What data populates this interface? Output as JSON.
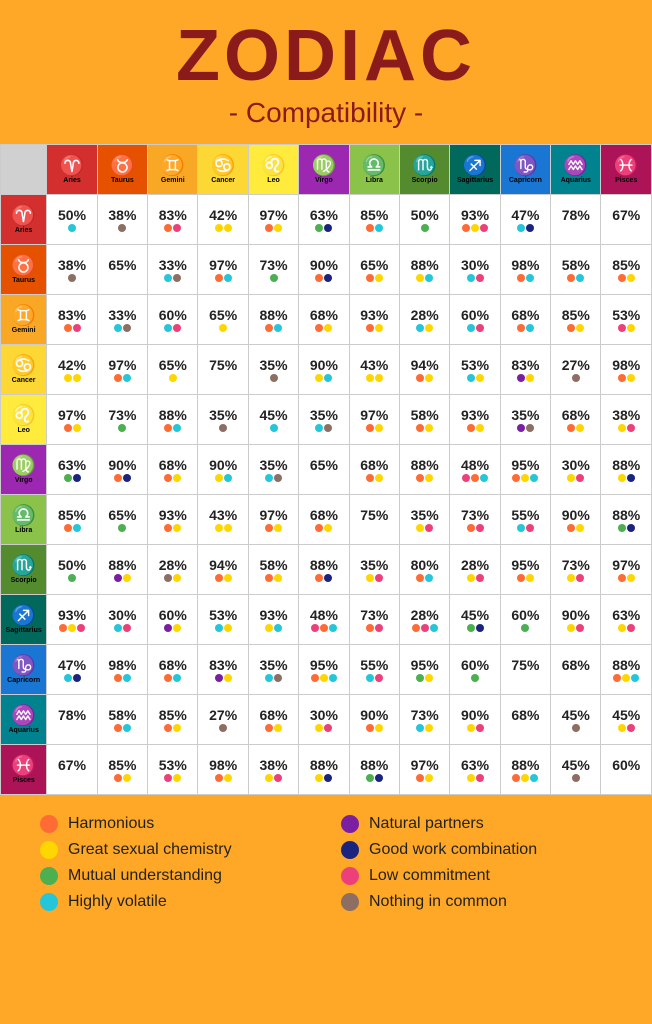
{
  "title": "ZODIAC",
  "subtitle": "- Compatibility -",
  "background_color": "#ffa726",
  "title_color": "#8b1a1a",
  "legend": [
    {
      "key": "harmonious",
      "label": "Harmonious",
      "color": "#ff6b35"
    },
    {
      "key": "great_sex",
      "label": "Great sexual chemistry",
      "color": "#ffd600"
    },
    {
      "key": "mutual",
      "label": "Mutual understanding",
      "color": "#4caf50"
    },
    {
      "key": "volatile",
      "label": "Highly volatile",
      "color": "#26c6da"
    },
    {
      "key": "natural",
      "label": "Natural partners",
      "color": "#7b1fa2"
    },
    {
      "key": "work",
      "label": "Good work combination",
      "color": "#1a237e"
    },
    {
      "key": "low",
      "label": "Low commitment",
      "color": "#ec407a"
    },
    {
      "key": "nothing",
      "label": "Nothing in common",
      "color": "#8d6e63"
    }
  ],
  "dot_colors": {
    "h": "#ff6b35",
    "s": "#ffd600",
    "m": "#4caf50",
    "v": "#26c6da",
    "n": "#7b1fa2",
    "w": "#1a237e",
    "l": "#ec407a",
    "x": "#8d6e63"
  },
  "signs": [
    {
      "name": "Aries",
      "glyph": "♈",
      "color": "#d32f2f"
    },
    {
      "name": "Taurus",
      "glyph": "♉",
      "color": "#e65100"
    },
    {
      "name": "Gemini",
      "glyph": "♊",
      "color": "#f9a825"
    },
    {
      "name": "Cancer",
      "glyph": "♋",
      "color": "#fdd835"
    },
    {
      "name": "Leo",
      "glyph": "♌",
      "color": "#ffeb3b"
    },
    {
      "name": "Virgo",
      "glyph": "♍",
      "color": "#9c27b0"
    },
    {
      "name": "Libra",
      "glyph": "♎",
      "color": "#8bc34a"
    },
    {
      "name": "Scorpio",
      "glyph": "♏",
      "color": "#558b2f"
    },
    {
      "name": "Sagittarius",
      "glyph": "♐",
      "color": "#00695c"
    },
    {
      "name": "Capricorn",
      "glyph": "♑",
      "color": "#1976d2"
    },
    {
      "name": "Aquarius",
      "glyph": "♒",
      "color": "#00838f"
    },
    {
      "name": "Pisces",
      "glyph": "♓",
      "color": "#ad1457"
    }
  ],
  "cells": [
    [
      {
        "p": "50%",
        "d": [
          "v"
        ]
      },
      {
        "p": "38%",
        "d": [
          "x"
        ]
      },
      {
        "p": "83%",
        "d": [
          "h",
          "l"
        ]
      },
      {
        "p": "42%",
        "d": [
          "s",
          "s"
        ]
      },
      {
        "p": "97%",
        "d": [
          "h",
          "s"
        ]
      },
      {
        "p": "63%",
        "d": [
          "m",
          "w"
        ]
      },
      {
        "p": "85%",
        "d": [
          "h",
          "v"
        ]
      },
      {
        "p": "50%",
        "d": [
          "m"
        ]
      },
      {
        "p": "93%",
        "d": [
          "h",
          "s",
          "l"
        ]
      },
      {
        "p": "47%",
        "d": [
          "v",
          "w"
        ]
      },
      {
        "p": "78%",
        "d": []
      },
      {
        "p": "67%",
        "d": []
      }
    ],
    [
      {
        "p": "38%",
        "d": [
          "x"
        ]
      },
      {
        "p": "65%",
        "d": []
      },
      {
        "p": "33%",
        "d": [
          "v",
          "x"
        ]
      },
      {
        "p": "97%",
        "d": [
          "h",
          "v"
        ]
      },
      {
        "p": "73%",
        "d": [
          "m"
        ]
      },
      {
        "p": "90%",
        "d": [
          "h",
          "w"
        ]
      },
      {
        "p": "65%",
        "d": [
          "h",
          "s"
        ]
      },
      {
        "p": "88%",
        "d": [
          "s",
          "v"
        ]
      },
      {
        "p": "30%",
        "d": [
          "v",
          "l"
        ]
      },
      {
        "p": "98%",
        "d": [
          "h",
          "v"
        ]
      },
      {
        "p": "58%",
        "d": [
          "h",
          "v"
        ]
      },
      {
        "p": "85%",
        "d": [
          "h",
          "s"
        ]
      }
    ],
    [
      {
        "p": "83%",
        "d": [
          "h",
          "l"
        ]
      },
      {
        "p": "33%",
        "d": [
          "v",
          "x"
        ]
      },
      {
        "p": "60%",
        "d": [
          "v",
          "l"
        ]
      },
      {
        "p": "65%",
        "d": [
          "s"
        ]
      },
      {
        "p": "88%",
        "d": [
          "h",
          "v"
        ]
      },
      {
        "p": "68%",
        "d": [
          "h",
          "s"
        ]
      },
      {
        "p": "93%",
        "d": [
          "h",
          "s"
        ]
      },
      {
        "p": "28%",
        "d": [
          "v",
          "s"
        ]
      },
      {
        "p": "60%",
        "d": [
          "v",
          "l"
        ]
      },
      {
        "p": "68%",
        "d": [
          "h",
          "v"
        ]
      },
      {
        "p": "85%",
        "d": [
          "h",
          "s"
        ]
      },
      {
        "p": "53%",
        "d": [
          "l",
          "s"
        ]
      }
    ],
    [
      {
        "p": "42%",
        "d": [
          "s",
          "s"
        ]
      },
      {
        "p": "97%",
        "d": [
          "h",
          "v"
        ]
      },
      {
        "p": "65%",
        "d": [
          "s"
        ]
      },
      {
        "p": "75%",
        "d": []
      },
      {
        "p": "35%",
        "d": [
          "x"
        ]
      },
      {
        "p": "90%",
        "d": [
          "s",
          "v"
        ]
      },
      {
        "p": "43%",
        "d": [
          "s",
          "s"
        ]
      },
      {
        "p": "94%",
        "d": [
          "h",
          "s"
        ]
      },
      {
        "p": "53%",
        "d": [
          "v",
          "s"
        ]
      },
      {
        "p": "83%",
        "d": [
          "n",
          "s"
        ]
      },
      {
        "p": "27%",
        "d": [
          "x"
        ]
      },
      {
        "p": "98%",
        "d": [
          "h",
          "s"
        ]
      }
    ],
    [
      {
        "p": "97%",
        "d": [
          "h",
          "s"
        ]
      },
      {
        "p": "73%",
        "d": [
          "m"
        ]
      },
      {
        "p": "88%",
        "d": [
          "h",
          "v"
        ]
      },
      {
        "p": "35%",
        "d": [
          "x"
        ]
      },
      {
        "p": "45%",
        "d": [
          "v"
        ]
      },
      {
        "p": "35%",
        "d": [
          "v",
          "x"
        ]
      },
      {
        "p": "97%",
        "d": [
          "h",
          "s"
        ]
      },
      {
        "p": "58%",
        "d": [
          "h",
          "s"
        ]
      },
      {
        "p": "93%",
        "d": [
          "h",
          "s"
        ]
      },
      {
        "p": "35%",
        "d": [
          "n",
          "x"
        ]
      },
      {
        "p": "68%",
        "d": [
          "h",
          "s"
        ]
      },
      {
        "p": "38%",
        "d": [
          "s",
          "l"
        ]
      }
    ],
    [
      {
        "p": "63%",
        "d": [
          "m",
          "w"
        ]
      },
      {
        "p": "90%",
        "d": [
          "h",
          "w"
        ]
      },
      {
        "p": "68%",
        "d": [
          "h",
          "s"
        ]
      },
      {
        "p": "90%",
        "d": [
          "s",
          "v"
        ]
      },
      {
        "p": "35%",
        "d": [
          "v",
          "x"
        ]
      },
      {
        "p": "65%",
        "d": []
      },
      {
        "p": "68%",
        "d": [
          "h",
          "s"
        ]
      },
      {
        "p": "88%",
        "d": [
          "h",
          "s"
        ]
      },
      {
        "p": "48%",
        "d": [
          "l",
          "h",
          "v"
        ]
      },
      {
        "p": "95%",
        "d": [
          "h",
          "s",
          "v"
        ]
      },
      {
        "p": "30%",
        "d": [
          "s",
          "l"
        ]
      },
      {
        "p": "88%",
        "d": [
          "s",
          "w"
        ]
      }
    ],
    [
      {
        "p": "85%",
        "d": [
          "h",
          "v"
        ]
      },
      {
        "p": "65%",
        "d": [
          "m"
        ]
      },
      {
        "p": "93%",
        "d": [
          "h",
          "s"
        ]
      },
      {
        "p": "43%",
        "d": [
          "s",
          "s"
        ]
      },
      {
        "p": "97%",
        "d": [
          "h",
          "s"
        ]
      },
      {
        "p": "68%",
        "d": [
          "h",
          "s"
        ]
      },
      {
        "p": "75%",
        "d": []
      },
      {
        "p": "35%",
        "d": [
          "s",
          "l"
        ]
      },
      {
        "p": "73%",
        "d": [
          "h",
          "l"
        ]
      },
      {
        "p": "55%",
        "d": [
          "v",
          "l"
        ]
      },
      {
        "p": "90%",
        "d": [
          "h",
          "s"
        ]
      },
      {
        "p": "88%",
        "d": [
          "m",
          "w"
        ]
      }
    ],
    [
      {
        "p": "50%",
        "d": [
          "m"
        ]
      },
      {
        "p": "88%",
        "d": [
          "n",
          "s"
        ]
      },
      {
        "p": "28%",
        "d": [
          "x",
          "s"
        ]
      },
      {
        "p": "94%",
        "d": [
          "h",
          "s"
        ]
      },
      {
        "p": "58%",
        "d": [
          "h",
          "s"
        ]
      },
      {
        "p": "88%",
        "d": [
          "h",
          "w"
        ]
      },
      {
        "p": "35%",
        "d": [
          "s",
          "l"
        ]
      },
      {
        "p": "80%",
        "d": [
          "h",
          "v"
        ]
      },
      {
        "p": "28%",
        "d": [
          "s",
          "l"
        ]
      },
      {
        "p": "95%",
        "d": [
          "h",
          "s"
        ]
      },
      {
        "p": "73%",
        "d": [
          "s",
          "l"
        ]
      },
      {
        "p": "97%",
        "d": [
          "h",
          "s"
        ]
      }
    ],
    [
      {
        "p": "93%",
        "d": [
          "h",
          "s",
          "l"
        ]
      },
      {
        "p": "30%",
        "d": [
          "v",
          "l"
        ]
      },
      {
        "p": "60%",
        "d": [
          "n",
          "s"
        ]
      },
      {
        "p": "53%",
        "d": [
          "v",
          "s"
        ]
      },
      {
        "p": "93%",
        "d": [
          "s",
          "v"
        ]
      },
      {
        "p": "48%",
        "d": [
          "l",
          "h",
          "v"
        ]
      },
      {
        "p": "73%",
        "d": [
          "h",
          "l"
        ]
      },
      {
        "p": "28%",
        "d": [
          "h",
          "l",
          "v"
        ]
      },
      {
        "p": "45%",
        "d": [
          "m",
          "w"
        ]
      },
      {
        "p": "60%",
        "d": [
          "m"
        ]
      },
      {
        "p": "90%",
        "d": [
          "s",
          "l"
        ]
      },
      {
        "p": "63%",
        "d": [
          "s",
          "l"
        ]
      }
    ],
    [
      {
        "p": "47%",
        "d": [
          "v",
          "w"
        ]
      },
      {
        "p": "98%",
        "d": [
          "h",
          "v"
        ]
      },
      {
        "p": "68%",
        "d": [
          "h",
          "v"
        ]
      },
      {
        "p": "83%",
        "d": [
          "n",
          "s"
        ]
      },
      {
        "p": "35%",
        "d": [
          "v",
          "x"
        ]
      },
      {
        "p": "95%",
        "d": [
          "h",
          "s",
          "v"
        ]
      },
      {
        "p": "55%",
        "d": [
          "v",
          "l"
        ]
      },
      {
        "p": "95%",
        "d": [
          "m",
          "s"
        ]
      },
      {
        "p": "60%",
        "d": [
          "m"
        ]
      },
      {
        "p": "75%",
        "d": []
      },
      {
        "p": "68%",
        "d": []
      },
      {
        "p": "88%",
        "d": [
          "h",
          "s",
          "v"
        ]
      }
    ],
    [
      {
        "p": "78%",
        "d": []
      },
      {
        "p": "58%",
        "d": [
          "h",
          "v"
        ]
      },
      {
        "p": "85%",
        "d": [
          "h",
          "s"
        ]
      },
      {
        "p": "27%",
        "d": [
          "x"
        ]
      },
      {
        "p": "68%",
        "d": [
          "h",
          "s"
        ]
      },
      {
        "p": "30%",
        "d": [
          "s",
          "l"
        ]
      },
      {
        "p": "90%",
        "d": [
          "h",
          "s"
        ]
      },
      {
        "p": "73%",
        "d": [
          "v",
          "s"
        ]
      },
      {
        "p": "90%",
        "d": [
          "s",
          "l"
        ]
      },
      {
        "p": "68%",
        "d": []
      },
      {
        "p": "45%",
        "d": [
          "x"
        ]
      },
      {
        "p": "45%",
        "d": [
          "s",
          "l"
        ]
      }
    ],
    [
      {
        "p": "67%",
        "d": []
      },
      {
        "p": "85%",
        "d": [
          "h",
          "s"
        ]
      },
      {
        "p": "53%",
        "d": [
          "l",
          "s"
        ]
      },
      {
        "p": "98%",
        "d": [
          "h",
          "s"
        ]
      },
      {
        "p": "38%",
        "d": [
          "s",
          "l"
        ]
      },
      {
        "p": "88%",
        "d": [
          "s",
          "w"
        ]
      },
      {
        "p": "88%",
        "d": [
          "m",
          "w"
        ]
      },
      {
        "p": "97%",
        "d": [
          "h",
          "s"
        ]
      },
      {
        "p": "63%",
        "d": [
          "s",
          "l"
        ]
      },
      {
        "p": "88%",
        "d": [
          "h",
          "s",
          "v"
        ]
      },
      {
        "p": "45%",
        "d": [
          "x"
        ]
      },
      {
        "p": "60%",
        "d": []
      }
    ]
  ]
}
